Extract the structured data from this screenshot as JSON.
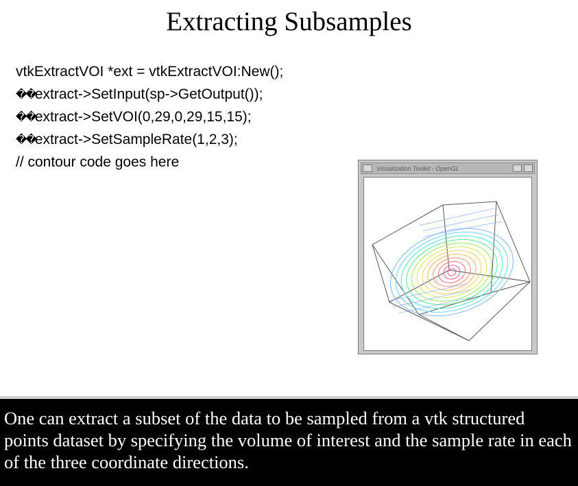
{
  "title": "Extracting Subsamples",
  "code": {
    "line1": "vtkExtractVOI *ext = vtkExtractVOI:New();",
    "line2_prefix": "��",
    "line2": " extract->SetInput(sp->GetOutput());",
    "line3_prefix": "��",
    "line3": " extract->SetVOI(0,29,0,29,15,15);",
    "line4_prefix": "��",
    "line4": " extract->SetSampleRate(1,2,3);",
    "line5": "// contour code goes here"
  },
  "window": {
    "title": "Visualization Toolkit - OpenGL"
  },
  "caption": "One can extract a subset of the data to be sampled from a vtk structured points dataset by specifying the volume of interest and the sample rate in each of the three coordinate directions."
}
